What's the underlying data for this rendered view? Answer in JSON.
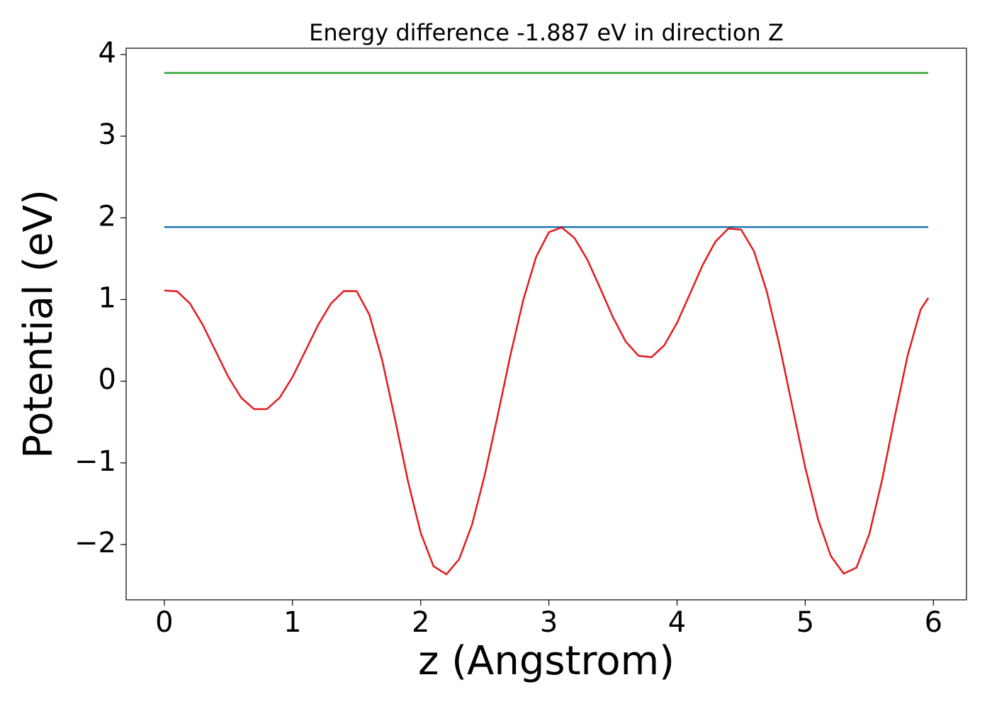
{
  "chart_data": {
    "type": "line",
    "title": "Energy difference -1.887 eV in direction Z",
    "x_label": "z (Angstrom)",
    "y_label": "Potential (eV)",
    "xlim": [
      -0.298,
      6.258
    ],
    "ylim": [
      -2.677,
      4.077
    ],
    "xticks": [
      0,
      1,
      2,
      3,
      4,
      5,
      6
    ],
    "yticks": [
      {
        "value": -2,
        "label": "−2"
      },
      {
        "value": -1,
        "label": "−1"
      },
      0,
      1,
      2,
      3,
      4
    ],
    "series": [
      {
        "color": "#2ca02c",
        "x": [
          0,
          5.96
        ],
        "values": [
          3.774,
          3.774
        ]
      },
      {
        "color": "#1f77b4",
        "x": [
          0,
          5.96
        ],
        "values": [
          1.887,
          1.887
        ]
      },
      {
        "color": "#e41a1c",
        "x": [
          0,
          0.1,
          0.2,
          0.3,
          0.4,
          0.5,
          0.6,
          0.7,
          0.8,
          0.9,
          1.0,
          1.1,
          1.2,
          1.3,
          1.4,
          1.5,
          1.6,
          1.7,
          1.8,
          1.9,
          2.0,
          2.1,
          2.2,
          2.3,
          2.4,
          2.5,
          2.6,
          2.7,
          2.8,
          2.9,
          3.0,
          3.1,
          3.2,
          3.3,
          3.4,
          3.5,
          3.6,
          3.7,
          3.8,
          3.9,
          4.0,
          4.1,
          4.2,
          4.3,
          4.4,
          4.5,
          4.6,
          4.7,
          4.8,
          4.9,
          5.0,
          5.1,
          5.2,
          5.3,
          5.4,
          5.5,
          5.6,
          5.7,
          5.8,
          5.9,
          5.96
        ],
        "values": [
          1.11,
          1.1,
          0.951,
          0.689,
          0.369,
          0.05,
          -0.203,
          -0.342,
          -0.342,
          -0.202,
          0.051,
          0.369,
          0.689,
          0.951,
          1.104,
          1.103,
          0.813,
          0.255,
          -0.467,
          -1.219,
          -1.857,
          -2.265,
          -2.365,
          -2.18,
          -1.759,
          -1.147,
          -0.425,
          0.318,
          0.993,
          1.519,
          1.824,
          1.883,
          1.753,
          1.488,
          1.14,
          0.782,
          0.484,
          0.31,
          0.294,
          0.438,
          0.715,
          1.067,
          1.423,
          1.71,
          1.869,
          1.856,
          1.592,
          1.098,
          0.433,
          -0.315,
          -1.056,
          -1.691,
          -2.142,
          -2.357,
          -2.282,
          -1.871,
          -1.206,
          -0.422,
          0.322,
          0.876,
          1.02
        ]
      }
    ]
  }
}
